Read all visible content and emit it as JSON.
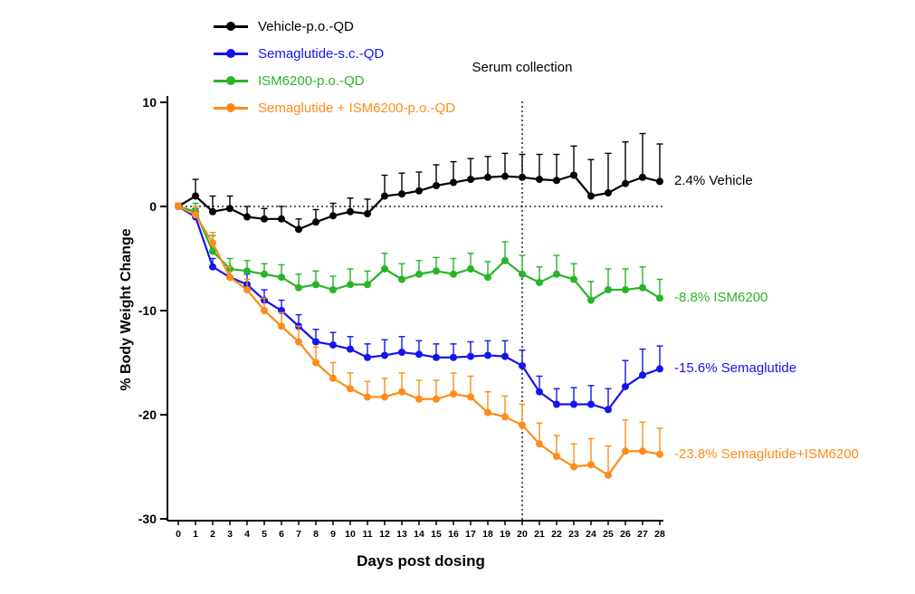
{
  "chart_data": {
    "type": "line",
    "title": "",
    "xlabel": "Days post dosing",
    "ylabel": "% Body Weight Change",
    "x": [
      0,
      1,
      2,
      3,
      4,
      5,
      6,
      7,
      8,
      9,
      10,
      11,
      12,
      13,
      14,
      15,
      16,
      17,
      18,
      19,
      20,
      21,
      22,
      23,
      24,
      25,
      26,
      27,
      28
    ],
    "ylim": [
      -30,
      10
    ],
    "yticks": [
      10,
      0,
      -10,
      -20,
      -30
    ],
    "grid": false,
    "legend_position": "top-left",
    "error_bars": "upper, SEM",
    "reference_lines": {
      "horizontal_y": 0,
      "vertical_x": 20,
      "vertical_label": "Serum collection"
    },
    "series": [
      {
        "name": "Vehicle-p.o.-QD",
        "color": "#000000",
        "end_label": "2.4% Vehicle",
        "values": [
          0,
          1.0,
          -0.5,
          -0.2,
          -1.0,
          -1.2,
          -1.2,
          -2.2,
          -1.5,
          -0.9,
          -0.5,
          -0.7,
          1.0,
          1.2,
          1.5,
          2.0,
          2.3,
          2.6,
          2.8,
          2.9,
          2.8,
          2.6,
          2.5,
          3.0,
          1.0,
          1.3,
          2.2,
          2.8,
          2.4
        ],
        "errors": [
          0.3,
          1.6,
          1.5,
          1.2,
          1.0,
          1.0,
          1.2,
          1.0,
          1.2,
          1.2,
          1.3,
          1.4,
          2.0,
          2.0,
          1.8,
          2.0,
          2.0,
          2.0,
          2.0,
          2.2,
          2.2,
          2.4,
          2.5,
          2.8,
          3.5,
          3.8,
          4.0,
          4.2,
          3.6
        ]
      },
      {
        "name": "Semaglutide-s.c.-QD",
        "color": "#1414f0",
        "end_label": "-15.6% Semaglutide",
        "values": [
          0,
          -1.0,
          -5.8,
          -6.8,
          -7.5,
          -9.0,
          -10.0,
          -11.5,
          -13.0,
          -13.3,
          -13.7,
          -14.5,
          -14.3,
          -14.0,
          -14.2,
          -14.5,
          -14.5,
          -14.4,
          -14.3,
          -14.4,
          -15.3,
          -17.8,
          -19.0,
          -19.0,
          -19.0,
          -19.5,
          -17.3,
          -16.2,
          -15.6
        ],
        "errors": [
          0.3,
          0.8,
          0.8,
          0.9,
          1.0,
          1.0,
          1.0,
          1.1,
          1.2,
          1.2,
          1.2,
          1.3,
          1.5,
          1.5,
          1.3,
          1.3,
          1.3,
          1.4,
          1.4,
          1.5,
          1.5,
          1.5,
          1.5,
          1.6,
          1.8,
          2.0,
          2.5,
          2.5,
          2.2
        ]
      },
      {
        "name": "ISM6200-p.o.-QD",
        "color": "#28b428",
        "end_label": "-8.8% ISM6200",
        "values": [
          0,
          -0.5,
          -4.3,
          -6.0,
          -6.2,
          -6.5,
          -6.8,
          -7.8,
          -7.5,
          -8.0,
          -7.5,
          -7.5,
          -6.0,
          -7.0,
          -6.5,
          -6.2,
          -6.5,
          -6.0,
          -6.8,
          -5.2,
          -6.5,
          -7.3,
          -6.5,
          -7.0,
          -9.0,
          -8.0,
          -8.0,
          -7.8,
          -8.8
        ],
        "errors": [
          0.3,
          0.8,
          1.5,
          1.0,
          1.0,
          1.0,
          1.2,
          1.3,
          1.3,
          1.3,
          1.5,
          1.3,
          1.5,
          1.5,
          1.3,
          1.3,
          1.5,
          1.5,
          1.5,
          1.8,
          1.8,
          1.5,
          1.8,
          1.5,
          1.8,
          2.0,
          2.0,
          2.0,
          1.8
        ]
      },
      {
        "name": "Semaglutide + ISM6200-p.o.-QD",
        "color": "#ff8c1a",
        "end_label": "-23.8% Semaglutide+ISM6200",
        "values": [
          0,
          -0.8,
          -3.5,
          -6.8,
          -8.0,
          -10.0,
          -11.5,
          -13.0,
          -15.0,
          -16.5,
          -17.5,
          -18.3,
          -18.3,
          -17.8,
          -18.5,
          -18.5,
          -18.0,
          -18.3,
          -19.8,
          -20.2,
          -21.0,
          -22.8,
          -24.0,
          -25.0,
          -24.8,
          -25.8,
          -23.5,
          -23.5,
          -23.8
        ],
        "errors": [
          0.3,
          0.8,
          1.0,
          1.0,
          1.0,
          1.2,
          1.3,
          1.5,
          1.5,
          1.5,
          1.5,
          1.5,
          1.8,
          1.8,
          1.8,
          1.8,
          2.0,
          2.0,
          2.0,
          2.0,
          2.0,
          2.0,
          2.0,
          2.2,
          2.5,
          2.8,
          3.0,
          2.8,
          2.5
        ]
      }
    ]
  }
}
